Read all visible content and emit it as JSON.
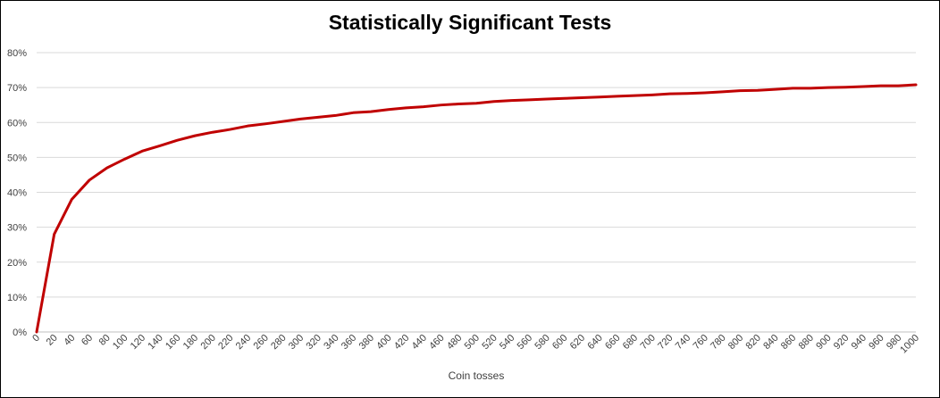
{
  "chart_data": {
    "type": "line",
    "title": "Statistically Significant Tests",
    "xlabel": "Coin tosses",
    "ylabel": "",
    "ylim": [
      0,
      0.8
    ],
    "yticks": [
      "0%",
      "10%",
      "20%",
      "30%",
      "40%",
      "50%",
      "60%",
      "70%",
      "80%"
    ],
    "grid": true,
    "legend": "none",
    "line_color": "#C00000",
    "x": [
      0,
      20,
      40,
      60,
      80,
      100,
      120,
      140,
      160,
      180,
      200,
      220,
      240,
      260,
      280,
      300,
      320,
      340,
      360,
      380,
      400,
      420,
      440,
      460,
      480,
      500,
      520,
      540,
      560,
      580,
      600,
      620,
      640,
      660,
      680,
      700,
      720,
      740,
      760,
      780,
      800,
      820,
      840,
      860,
      880,
      900,
      920,
      940,
      960,
      980,
      1000
    ],
    "series": [
      {
        "values": [
          0.0,
          0.28,
          0.38,
          0.435,
          0.47,
          0.495,
          0.518,
          0.533,
          0.549,
          0.562,
          0.572,
          0.58,
          0.59,
          0.596,
          0.603,
          0.61,
          0.615,
          0.62,
          0.628,
          0.631,
          0.637,
          0.642,
          0.645,
          0.65,
          0.653,
          0.655,
          0.66,
          0.663,
          0.665,
          0.667,
          0.669,
          0.671,
          0.673,
          0.675,
          0.677,
          0.679,
          0.682,
          0.683,
          0.685,
          0.688,
          0.691,
          0.692,
          0.695,
          0.698,
          0.698,
          0.7,
          0.701,
          0.703,
          0.705,
          0.705,
          0.708
        ]
      }
    ]
  }
}
